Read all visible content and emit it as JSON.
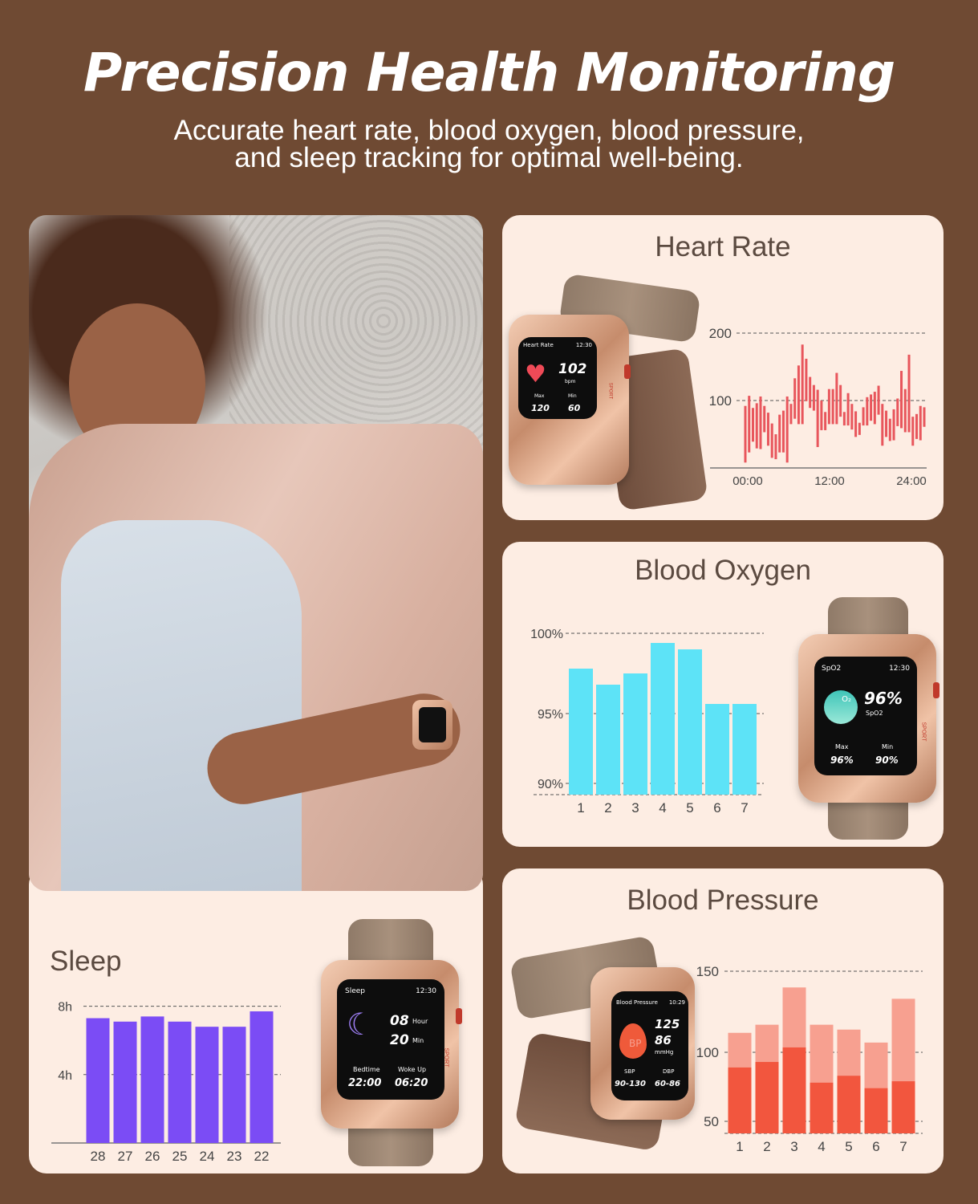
{
  "header": {
    "title": "Precision Health Monitoring",
    "subtitle_line1": "Accurate heart rate, blood oxygen, blood pressure,",
    "subtitle_line2": "and sleep tracking for optimal well-being."
  },
  "panels": {
    "heart_rate": "Heart Rate",
    "blood_oxygen": "Blood Oxygen",
    "blood_pressure": "Blood Pressure",
    "sleep": "Sleep"
  },
  "watches": {
    "heart_rate": {
      "title": "Heart Rate",
      "time": "12:30",
      "value": "102",
      "unit": "bpm",
      "max_label": "Max",
      "max": "120",
      "min_label": "Min",
      "min": "60",
      "side_label": "SPORT"
    },
    "spo2": {
      "title": "SpO2",
      "time": "12:30",
      "value": "96%",
      "unit": "SpO2",
      "icon_label": "O₂",
      "max_label": "Max",
      "max": "96%",
      "min_label": "Min",
      "min": "90%",
      "side_label": "SPORT"
    },
    "sleep": {
      "title": "Sleep",
      "time": "12:30",
      "hours": "08",
      "hours_unit": "Hour",
      "mins": "20",
      "mins_unit": "Min",
      "bed_label": "Bedtime",
      "bed": "22:00",
      "wake_label": "Woke Up",
      "wake": "06:20",
      "side_label": "SPORT"
    },
    "bp": {
      "title": "Blood Pressure",
      "time": "10:29",
      "sys": "125",
      "dia": "86",
      "unit": "mmHg",
      "icon_label": "BP",
      "sbp_label": "SBP",
      "sbp": "90-130",
      "dbp_label": "DBP",
      "dbp": "60-86"
    }
  },
  "colors": {
    "background": "#6f4a33",
    "panel": "#fdede3",
    "heart": "#e8565c",
    "spo2": "#5de3f7",
    "sleep": "#7b4cf5",
    "bp_sys": "#f7a090",
    "bp_dia": "#f2563e"
  },
  "chart_data": [
    {
      "type": "bar",
      "id": "heart_rate",
      "ylim": [
        0,
        200
      ],
      "yticks": [
        "200",
        "100"
      ],
      "ytick_values": [
        200,
        100
      ],
      "xticks": [
        "00:00",
        "12:00",
        "24:00"
      ],
      "ranges": [
        [
          8,
          92
        ],
        [
          23,
          107
        ],
        [
          39,
          89
        ],
        [
          29,
          96
        ],
        [
          28,
          106
        ],
        [
          53,
          92
        ],
        [
          33,
          82
        ],
        [
          15,
          66
        ],
        [
          13,
          50
        ],
        [
          23,
          79
        ],
        [
          23,
          85
        ],
        [
          8,
          106
        ],
        [
          65,
          95
        ],
        [
          73,
          133
        ],
        [
          65,
          152
        ],
        [
          65,
          183
        ],
        [
          99,
          162
        ],
        [
          89,
          135
        ],
        [
          85,
          123
        ],
        [
          31,
          116
        ],
        [
          56,
          100
        ],
        [
          56,
          83
        ],
        [
          65,
          117
        ],
        [
          65,
          117
        ],
        [
          65,
          141
        ],
        [
          76,
          123
        ],
        [
          63,
          83
        ],
        [
          63,
          111
        ],
        [
          57,
          95
        ],
        [
          46,
          84
        ],
        [
          49,
          67
        ],
        [
          63,
          90
        ],
        [
          63,
          105
        ],
        [
          70,
          109
        ],
        [
          65,
          113
        ],
        [
          79,
          122
        ],
        [
          33,
          95
        ],
        [
          46,
          85
        ],
        [
          40,
          73
        ],
        [
          41,
          87
        ],
        [
          62,
          103
        ],
        [
          59,
          144
        ],
        [
          53,
          117
        ],
        [
          53,
          168
        ],
        [
          33,
          76
        ],
        [
          43,
          80
        ],
        [
          41,
          92
        ],
        [
          61,
          90
        ]
      ]
    },
    {
      "type": "bar",
      "id": "blood_oxygen",
      "ylim": [
        90,
        100
      ],
      "yticks": [
        "100%",
        "95%",
        "90%"
      ],
      "ytick_values": [
        100,
        95,
        90
      ],
      "categories": [
        "1",
        "2",
        "3",
        "4",
        "5",
        "6",
        "7"
      ],
      "values": [
        97.8,
        96.8,
        97.5,
        99.4,
        99.0,
        95.6,
        95.6
      ]
    },
    {
      "type": "bar",
      "id": "sleep",
      "ylim": [
        0,
        8
      ],
      "yticks": [
        "8h",
        "4h"
      ],
      "ytick_values": [
        8,
        4
      ],
      "categories": [
        "28",
        "27",
        "26",
        "25",
        "24",
        "23",
        "22"
      ],
      "values": [
        7.3,
        7.1,
        7.4,
        7.1,
        6.8,
        6.8,
        7.7
      ]
    },
    {
      "type": "bar",
      "id": "blood_pressure",
      "ylim": [
        50,
        150
      ],
      "yticks": [
        "150",
        "100",
        "50"
      ],
      "ytick_values": [
        150,
        100,
        50
      ],
      "categories": [
        "1",
        "2",
        "3",
        "4",
        "5",
        "6",
        "7"
      ],
      "series": [
        {
          "values": [
            112,
            117,
            140,
            117,
            114,
            106,
            133
          ]
        },
        {
          "values": [
            89,
            93,
            103,
            78,
            83,
            74,
            79
          ]
        }
      ]
    }
  ]
}
